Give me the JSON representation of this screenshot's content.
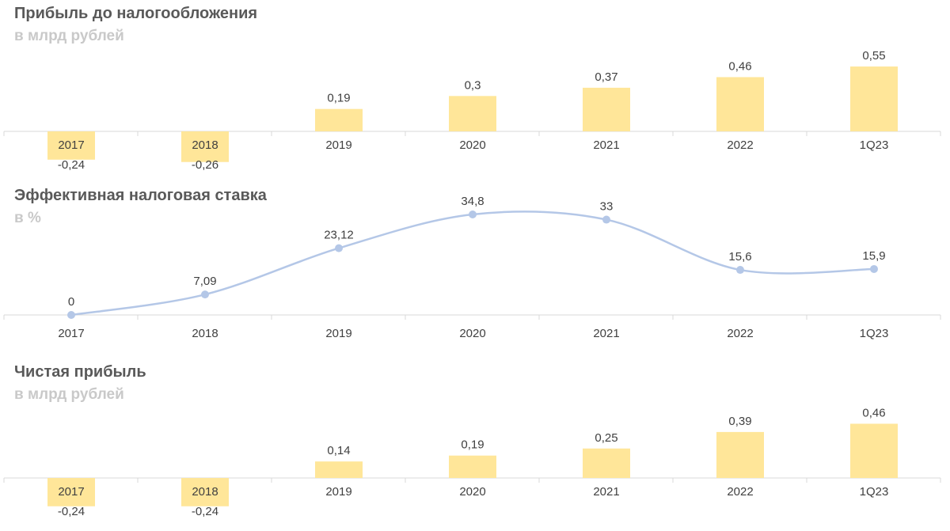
{
  "chart_data": [
    {
      "type": "bar",
      "title": "Прибыль до налогообложения",
      "subtitle": "в млрд рублей",
      "categories": [
        "2017",
        "2018",
        "2019",
        "2020",
        "2021",
        "2022",
        "1Q23"
      ],
      "values": [
        -0.24,
        -0.26,
        0.19,
        0.3,
        0.37,
        0.46,
        0.55
      ],
      "value_labels": [
        "-0,24",
        "-0,26",
        "0,19",
        "0,3",
        "0,37",
        "0,46",
        "0,55"
      ],
      "color": "#ffe699",
      "ylim": [
        -0.26,
        0.55
      ]
    },
    {
      "type": "line",
      "title": "Эффективная налоговая ставка",
      "subtitle": "в %",
      "categories": [
        "2017",
        "2018",
        "2019",
        "2020",
        "2021",
        "2022",
        "1Q23"
      ],
      "values": [
        0,
        7.09,
        23.12,
        34.8,
        33,
        15.6,
        15.9
      ],
      "value_labels": [
        "0",
        "7,09",
        "23,12",
        "34,8",
        "33",
        "15,6",
        "15,9"
      ],
      "color": "#b4c7e7",
      "ylim": [
        0,
        34.8
      ]
    },
    {
      "type": "bar",
      "title": "Чистая прибыль",
      "subtitle": "в млрд рублей",
      "categories": [
        "2017",
        "2018",
        "2019",
        "2020",
        "2021",
        "2022",
        "1Q23"
      ],
      "values": [
        -0.24,
        -0.24,
        0.14,
        0.19,
        0.25,
        0.39,
        0.46
      ],
      "value_labels": [
        "-0,24",
        "-0,24",
        "0,14",
        "0,19",
        "0,25",
        "0,39",
        "0,46"
      ],
      "color": "#ffe699",
      "ylim": [
        -0.24,
        0.46
      ]
    }
  ]
}
